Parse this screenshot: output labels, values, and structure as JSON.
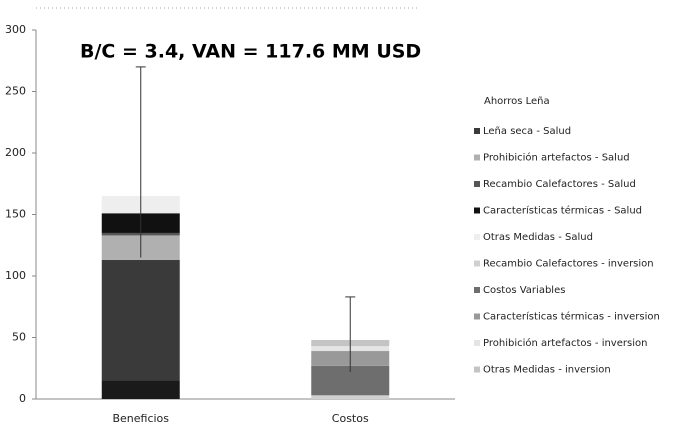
{
  "chart_data": {
    "type": "bar",
    "stacked": true,
    "title": "B/C = 3.4, VAN = 117.6 MM USD",
    "categories": [
      "Beneficios",
      "Costos"
    ],
    "series": [
      {
        "name": "Ahorros Leña",
        "color": "#1a1a1a",
        "values": [
          15,
          0
        ]
      },
      {
        "name": "Leña seca - Salud",
        "color": "#3a3a3a",
        "values": [
          98,
          0
        ]
      },
      {
        "name": "Prohibición artefactos - Salud",
        "color": "#b0b0b0",
        "values": [
          20,
          0
        ]
      },
      {
        "name": "Recambio Calefactores - Salud",
        "color": "#555555",
        "values": [
          2,
          0
        ]
      },
      {
        "name": "Características térmicas - Salud",
        "color": "#111111",
        "values": [
          16,
          0
        ]
      },
      {
        "name": "Otras Medidas - Salud",
        "color": "#eeeeee",
        "values": [
          14,
          0
        ]
      },
      {
        "name": "Recambio Calefactores - inversion",
        "color": "#d0d0d0",
        "values": [
          0,
          3
        ]
      },
      {
        "name": "Costos Variables",
        "color": "#6e6e6e",
        "values": [
          0,
          24
        ]
      },
      {
        "name": "Características térmicas - inversion",
        "color": "#999999",
        "values": [
          0,
          12
        ]
      },
      {
        "name": "Prohibición artefactos - inversion",
        "color": "#e4e4e4",
        "values": [
          0,
          4
        ]
      },
      {
        "name": "Otras Medidas - inversion",
        "color": "#c4c4c4",
        "values": [
          0,
          5
        ]
      }
    ],
    "error_low": [
      115,
      22
    ],
    "error_high": [
      270,
      83
    ],
    "ylim": [
      0,
      300
    ],
    "yticks": [
      0,
      50,
      100,
      150,
      200,
      250,
      300
    ],
    "grid": false
  }
}
